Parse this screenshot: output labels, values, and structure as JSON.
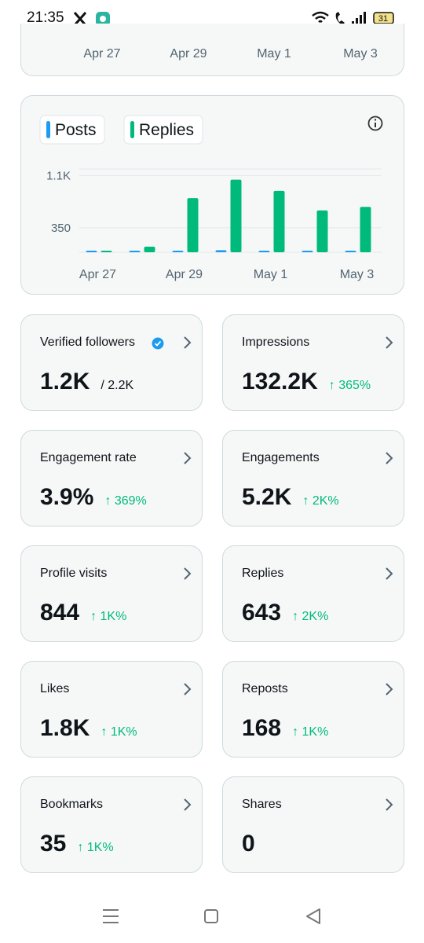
{
  "status_bar": {
    "time": "21:35",
    "battery": "31"
  },
  "top_chart": {
    "x_labels": [
      "Apr 27",
      "Apr 29",
      "May 1",
      "May 3"
    ]
  },
  "chart_data": {
    "type": "bar",
    "categories": [
      "Apr 27",
      null,
      "Apr 29",
      null,
      "May 1",
      null,
      "May 3"
    ],
    "series": [
      {
        "name": "Posts",
        "color": "#1d9bf0",
        "values": [
          0,
          0,
          0,
          30,
          0,
          0,
          0
        ]
      },
      {
        "name": "Replies",
        "color": "#00ba7c",
        "values": [
          0,
          80,
          775,
          1040,
          880,
          600,
          650
        ]
      }
    ],
    "ylim": [
      0,
      1250
    ],
    "yticks": [
      350,
      {
        "value": 1100,
        "label": "1.1K"
      }
    ],
    "grid": true
  },
  "cards": [
    {
      "label": "Verified followers",
      "value": "1.2K",
      "total": "/ 2.2K"
    },
    {
      "label": "Impressions",
      "value": "132.2K",
      "change": "↑ 365%"
    },
    {
      "label": "Engagement rate",
      "value": "3.9%",
      "change": "↑ 369%"
    },
    {
      "label": "Engagements",
      "value": "5.2K",
      "change": "↑ 2K%"
    },
    {
      "label": "Profile visits",
      "value": "844",
      "change": "↑ 1K%"
    },
    {
      "label": "Replies",
      "value": "643",
      "change": "↑ 2K%"
    },
    {
      "label": "Likes",
      "value": "1.8K",
      "change": "↑ 1K%"
    },
    {
      "label": "Reposts",
      "value": "168",
      "change": "↑ 1K%"
    },
    {
      "label": "Bookmarks",
      "value": "35",
      "change": "↑ 1K%"
    },
    {
      "label": "Shares",
      "value": "0"
    }
  ]
}
